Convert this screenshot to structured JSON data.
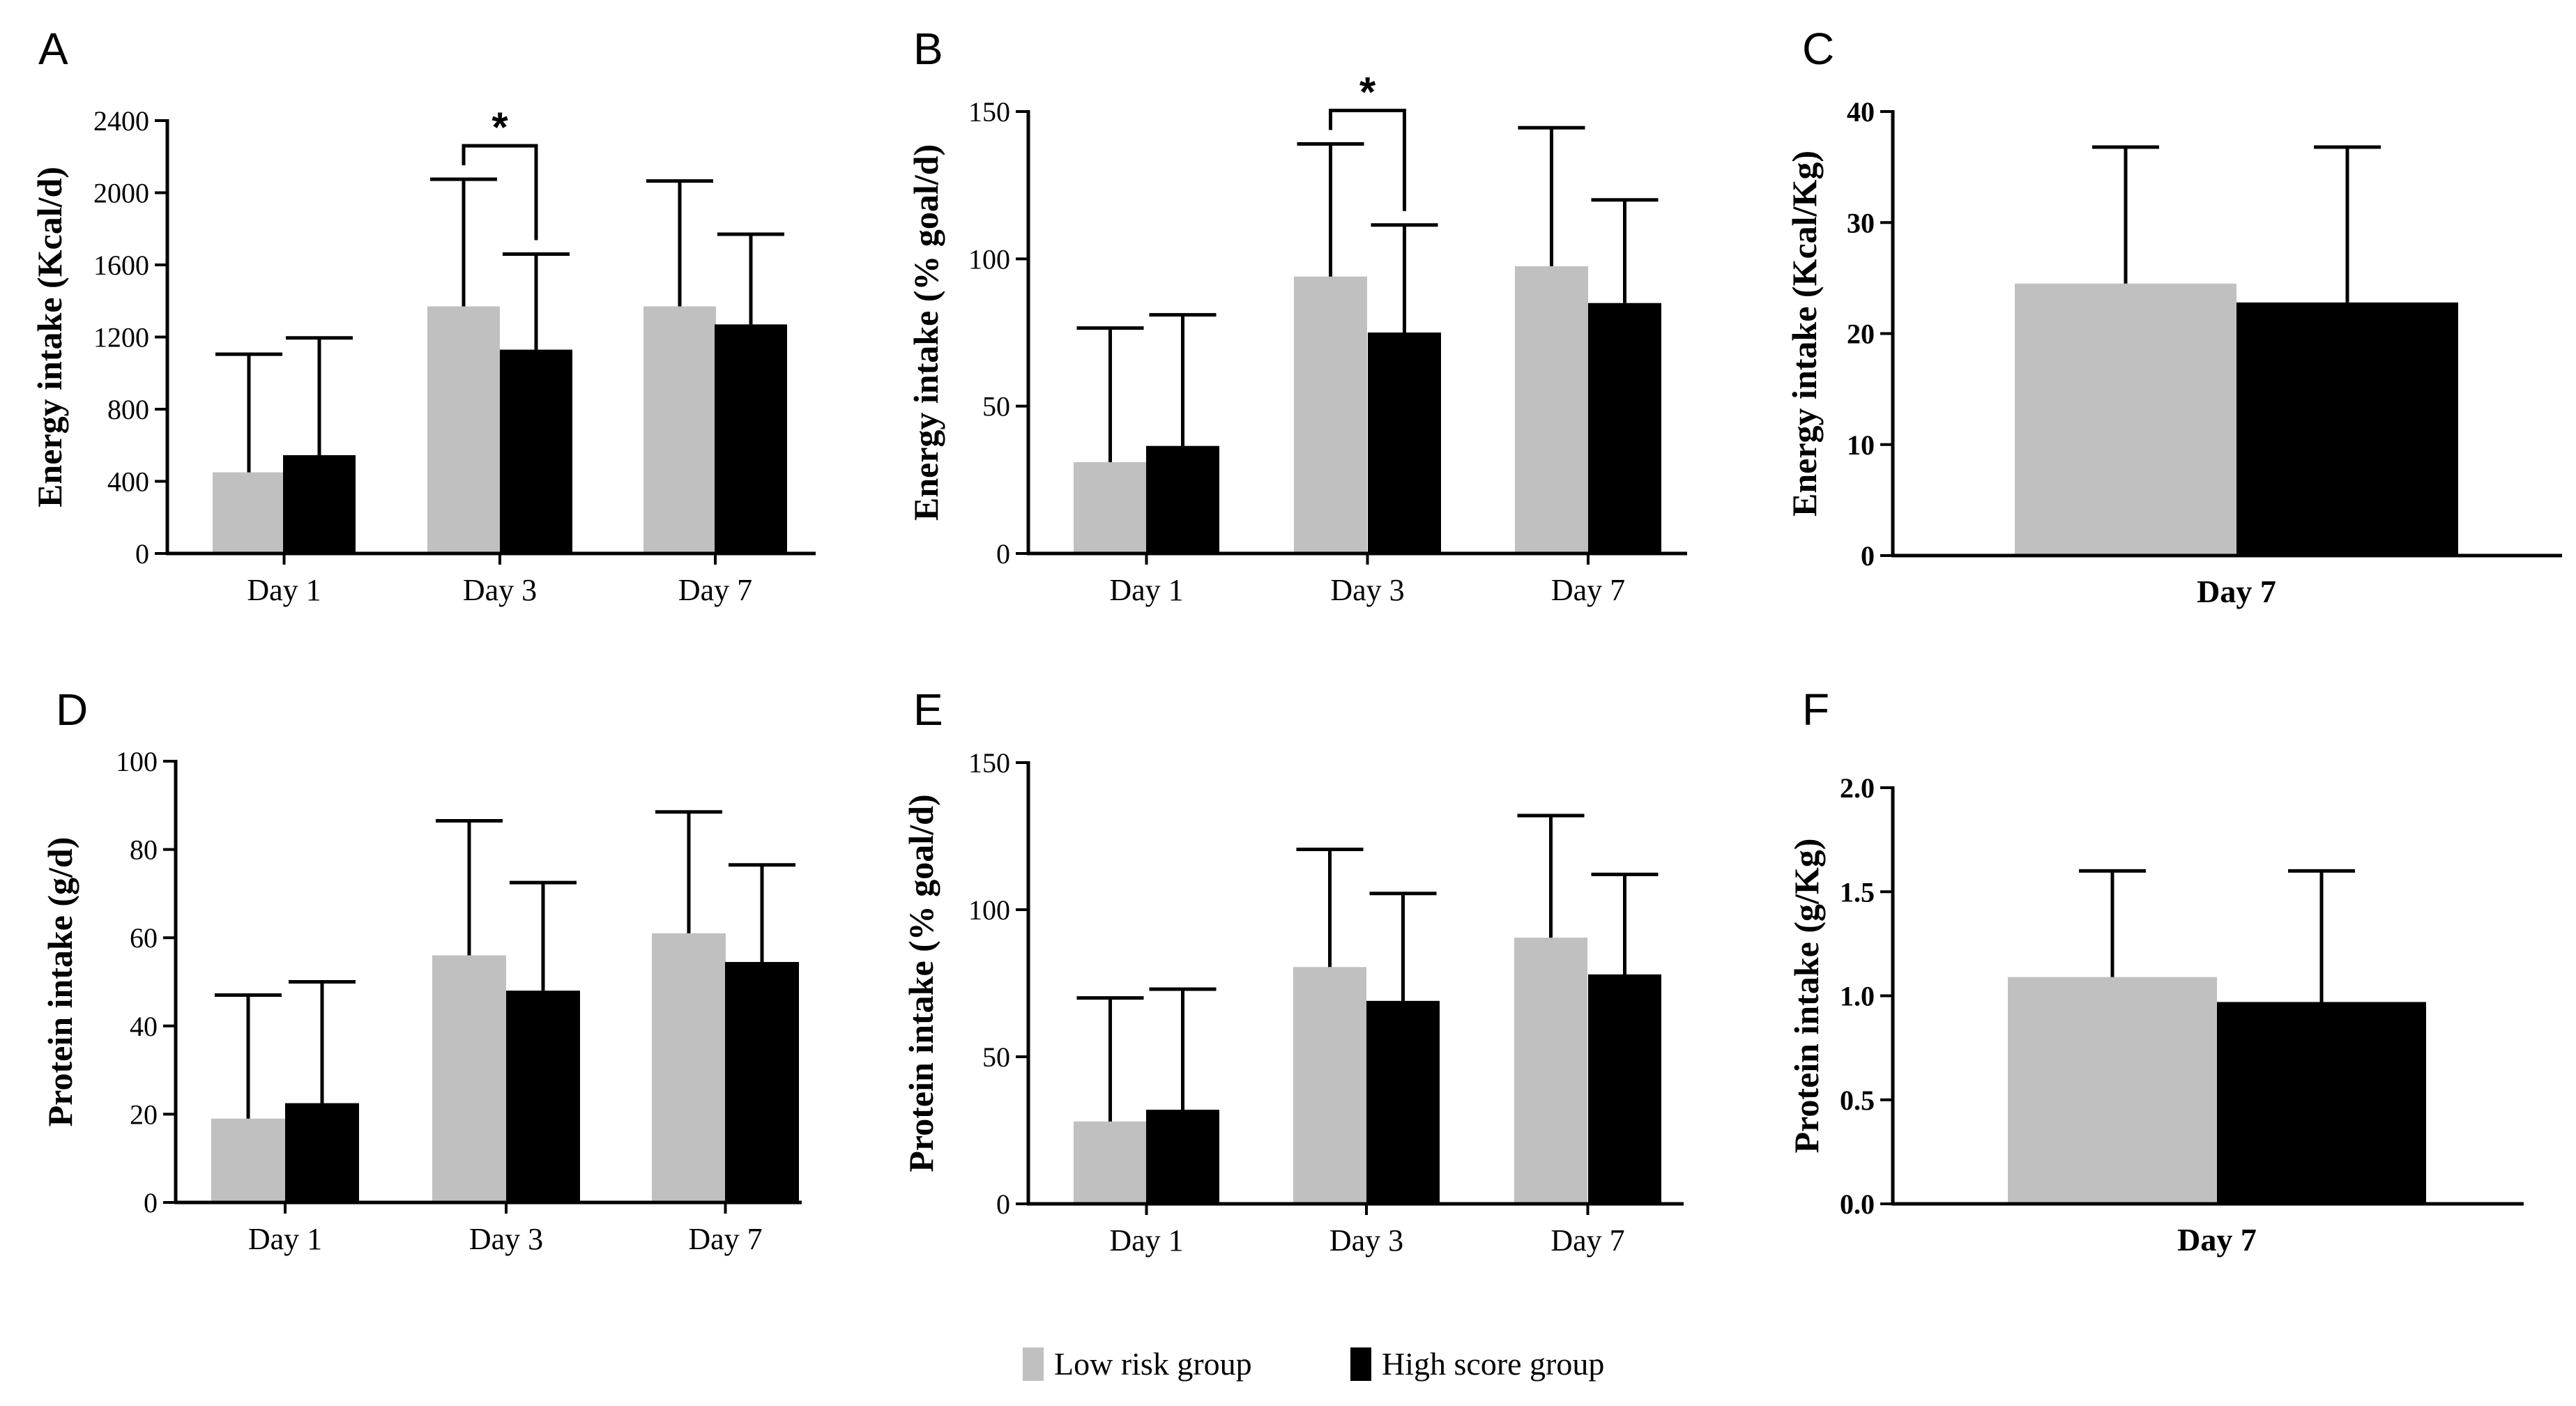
{
  "legend": [
    {
      "label": "Low risk group",
      "color": "#c0c0c0"
    },
    {
      "label": "High score group",
      "color": "#000000"
    }
  ],
  "chart_data": [
    {
      "panel": "A",
      "type": "bar",
      "ylabel": "Energy intake (Kcal/d)",
      "categories": [
        "Day 1",
        "Day 3",
        "Day 7"
      ],
      "ylim": [
        0,
        2400
      ],
      "yticks": [
        0,
        400,
        800,
        1200,
        1600,
        2000,
        2400
      ],
      "ytick_labels": [
        "0",
        "400",
        "800",
        "1200",
        "1600",
        "2000",
        "2400"
      ],
      "series": [
        {
          "name": "Low risk group",
          "values": [
            450,
            1370,
            1370
          ],
          "errors": [
            655,
            705,
            695
          ]
        },
        {
          "name": "High score group",
          "values": [
            545,
            1130,
            1270
          ],
          "errors": [
            650,
            530,
            500
          ]
        }
      ],
      "significance": [
        {
          "category": "Day 3",
          "label": "*"
        }
      ]
    },
    {
      "panel": "B",
      "type": "bar",
      "ylabel": "Energy intake (% goal/d)",
      "categories": [
        "Day 1",
        "Day 3",
        "Day 7"
      ],
      "ylim": [
        0,
        150
      ],
      "yticks": [
        0,
        50,
        100,
        150
      ],
      "ytick_labels": [
        "0",
        "50",
        "100",
        "150"
      ],
      "series": [
        {
          "name": "Low risk group",
          "values": [
            31,
            94,
            97.5
          ],
          "errors": [
            45.5,
            45,
            47
          ]
        },
        {
          "name": "High score group",
          "values": [
            36.5,
            75,
            85
          ],
          "errors": [
            44.5,
            36.5,
            35
          ]
        }
      ],
      "significance": [
        {
          "category": "Day 3",
          "label": "*"
        }
      ]
    },
    {
      "panel": "C",
      "type": "bar",
      "ylabel": "Energy intake (Kcal/Kg)",
      "categories": [
        "Day 7"
      ],
      "ylim": [
        0,
        40
      ],
      "yticks": [
        0,
        10,
        20,
        30,
        40
      ],
      "ytick_labels": [
        "0",
        "10",
        "20",
        "30",
        "40"
      ],
      "series": [
        {
          "name": "Low risk group",
          "values": [
            24.5
          ],
          "errors": [
            12.3
          ]
        },
        {
          "name": "High score group",
          "values": [
            22.8
          ],
          "errors": [
            14
          ]
        }
      ],
      "significance": []
    },
    {
      "panel": "D",
      "type": "bar",
      "ylabel": "Protein intake (g/d)",
      "categories": [
        "Day 1",
        "Day 3",
        "Day 7"
      ],
      "ylim": [
        0,
        100
      ],
      "yticks": [
        0,
        20,
        40,
        60,
        80,
        100
      ],
      "ytick_labels": [
        "0",
        "20",
        "40",
        "60",
        "80",
        "100"
      ],
      "series": [
        {
          "name": "Low risk group",
          "values": [
            19,
            56,
            61
          ],
          "errors": [
            28,
            30.5,
            27.5
          ]
        },
        {
          "name": "High score group",
          "values": [
            22.5,
            48,
            54.5
          ],
          "errors": [
            27.5,
            24.5,
            22
          ]
        }
      ],
      "significance": []
    },
    {
      "panel": "E",
      "type": "bar",
      "ylabel": "Protein intake (% goal/d)",
      "categories": [
        "Day 1",
        "Day 3",
        "Day 7"
      ],
      "ylim": [
        0,
        150
      ],
      "yticks": [
        0,
        50,
        100,
        150
      ],
      "ytick_labels": [
        "0",
        "50",
        "100",
        "150"
      ],
      "series": [
        {
          "name": "Low risk group",
          "values": [
            28,
            80.5,
            90.5
          ],
          "errors": [
            42,
            40,
            41.5
          ]
        },
        {
          "name": "High score group",
          "values": [
            32,
            69,
            78
          ],
          "errors": [
            41,
            36.5,
            34
          ]
        }
      ],
      "significance": []
    },
    {
      "panel": "F",
      "type": "bar",
      "ylabel": "Protein intake (g/Kg)",
      "categories": [
        "Day 7"
      ],
      "ylim": [
        0,
        2
      ],
      "yticks": [
        0,
        0.5,
        1,
        1.5,
        2
      ],
      "ytick_labels": [
        "0.0",
        "0.5",
        "1.0",
        "1.5",
        "2.0"
      ],
      "series": [
        {
          "name": "Low risk group",
          "values": [
            1.09
          ],
          "errors": [
            0.51
          ]
        },
        {
          "name": "High score group",
          "values": [
            0.97
          ],
          "errors": [
            0.63
          ]
        }
      ],
      "significance": []
    }
  ]
}
